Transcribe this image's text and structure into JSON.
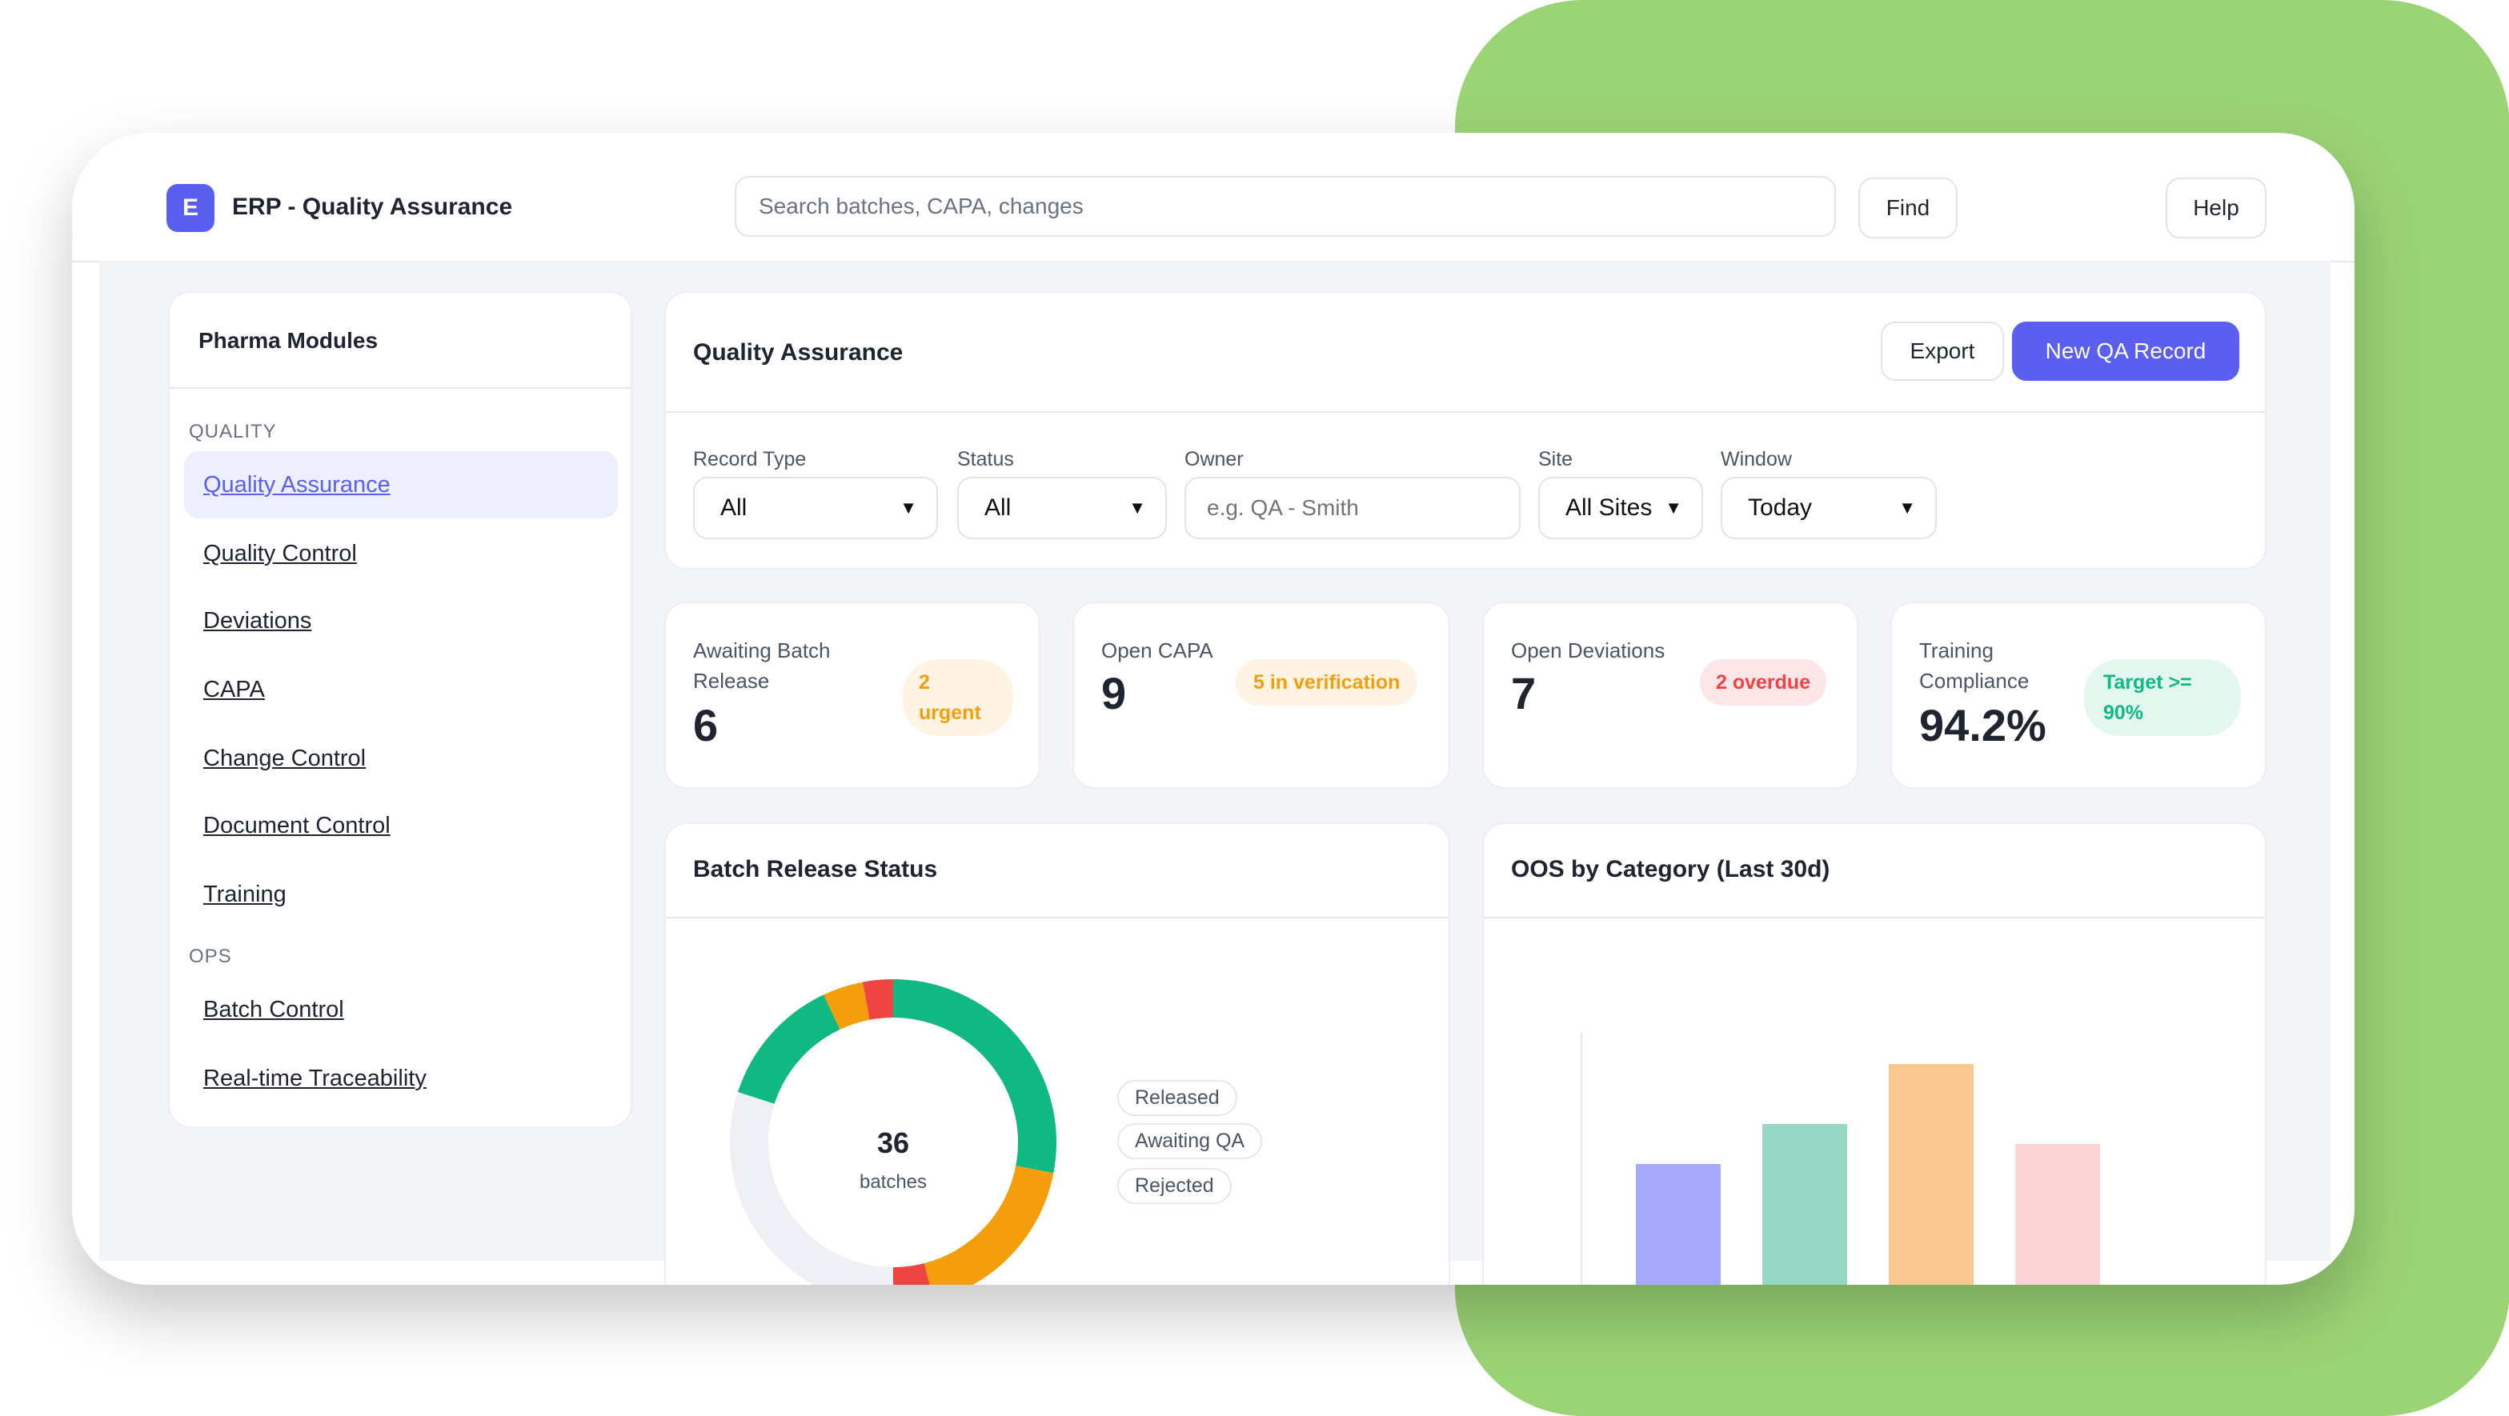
{
  "header": {
    "logo_letter": "E",
    "app_title": "ERP - Quality Assurance",
    "search_placeholder": "Search batches, CAPA, changes",
    "find_label": "Find",
    "help_label": "Help"
  },
  "sidebar": {
    "title": "Pharma Modules",
    "sections": [
      {
        "label": "QUALITY",
        "items": [
          {
            "label": "Quality Assurance",
            "active": true
          },
          {
            "label": "Quality Control"
          },
          {
            "label": "Deviations"
          },
          {
            "label": "CAPA"
          },
          {
            "label": "Change Control"
          },
          {
            "label": "Document Control"
          },
          {
            "label": "Training"
          }
        ]
      },
      {
        "label": "OPS",
        "items": [
          {
            "label": "Batch Control"
          },
          {
            "label": "Real-time Traceability"
          }
        ]
      }
    ]
  },
  "main": {
    "title": "Quality Assurance",
    "export_label": "Export",
    "new_record_label": "New QA Record",
    "accent": "#5b5ff0",
    "filters": {
      "record_type": {
        "label": "Record Type",
        "value": "All"
      },
      "status": {
        "label": "Status",
        "value": "All"
      },
      "owner": {
        "label": "Owner",
        "placeholder": "e.g. QA - Smith"
      },
      "site": {
        "label": "Site",
        "value": "All Sites"
      },
      "window": {
        "label": "Window",
        "value": "Today"
      }
    }
  },
  "kpis": [
    {
      "label": "Awaiting Batch Release",
      "value": "6",
      "badge": "2 urgent",
      "badge_color": "#f59e0b"
    },
    {
      "label": "Open CAPA",
      "value": "9",
      "badge": "5 in verification",
      "badge_color": "#f59e0b"
    },
    {
      "label": "Open Deviations",
      "value": "7",
      "badge": "2 overdue",
      "badge_color": "#ef4444"
    },
    {
      "label": "Training Compliance",
      "value": "94.2%",
      "badge": "Target >= 90%",
      "badge_color": "#10b981"
    }
  ],
  "chart_data": [
    {
      "type": "pie",
      "title": "Batch Release Status",
      "center_value": "36",
      "center_label": "batches",
      "legend": [
        "Released",
        "Awaiting QA",
        "Rejected"
      ],
      "colors": {
        "Released": "#10b981",
        "Awaiting QA": "#f59e0b",
        "Rejected": "#ef4444",
        "empty": "#eef0f5"
      },
      "segments": [
        {
          "status": "Released",
          "fraction": 0.28
        },
        {
          "status": "Awaiting QA",
          "fraction": 0.18
        },
        {
          "status": "Rejected",
          "fraction": 0.04
        },
        {
          "status": "empty",
          "fraction": 0.3
        },
        {
          "status": "Released",
          "fraction": 0.13
        },
        {
          "status": "Awaiting QA",
          "fraction": 0.04
        },
        {
          "status": "Rejected",
          "fraction": 0.03
        }
      ]
    },
    {
      "type": "bar",
      "title": "OOS by Category (Last 30d)",
      "categories": [
        "",
        "",
        "",
        ""
      ],
      "values": [
        5,
        7,
        10,
        6
      ],
      "colors": [
        "#a5a8fb",
        "#96d8c4",
        "#f9c891",
        "#fdd4d6"
      ]
    }
  ]
}
